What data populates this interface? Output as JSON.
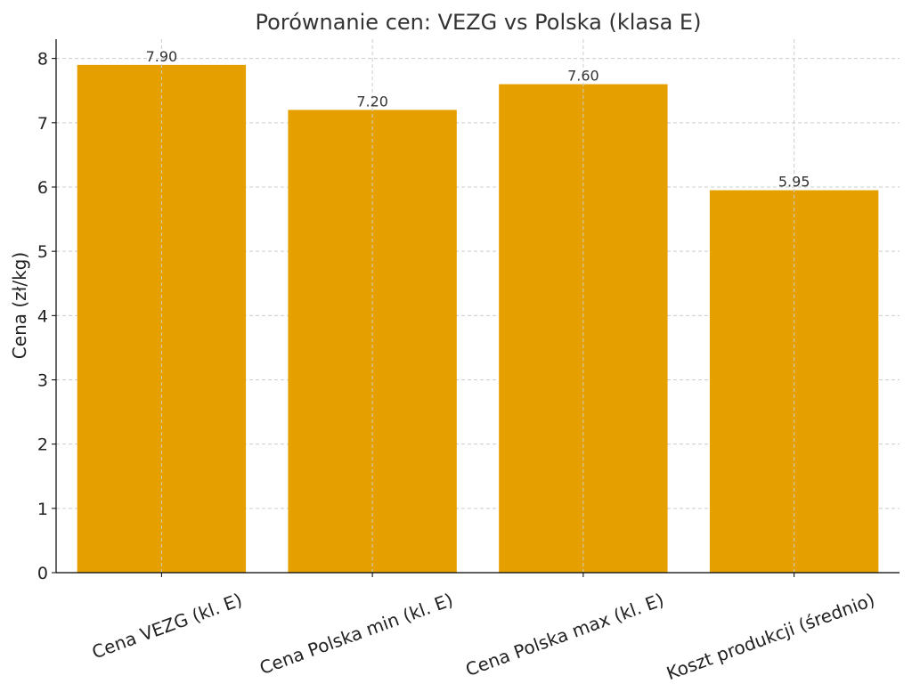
{
  "chart_data": {
    "type": "bar",
    "title": "Porównanie cen: VEZG vs Polska (klasa E)",
    "xlabel": "",
    "ylabel": "Cena (zł/kg)",
    "categories": [
      "Cena VEZG (kl. E)",
      "Cena Polska min (kl. E)",
      "Cena Polska max (kl. E)",
      "Koszt produkcji (średnio)"
    ],
    "values": [
      7.9,
      7.2,
      7.6,
      5.95
    ],
    "data_labels": [
      "7.90",
      "7.20",
      "7.60",
      "5.95"
    ],
    "ylim": [
      0,
      8.3
    ],
    "yticks": [
      0,
      1,
      2,
      3,
      4,
      5,
      6,
      7,
      8
    ],
    "grid": true,
    "bar_color": "#E5A000"
  }
}
